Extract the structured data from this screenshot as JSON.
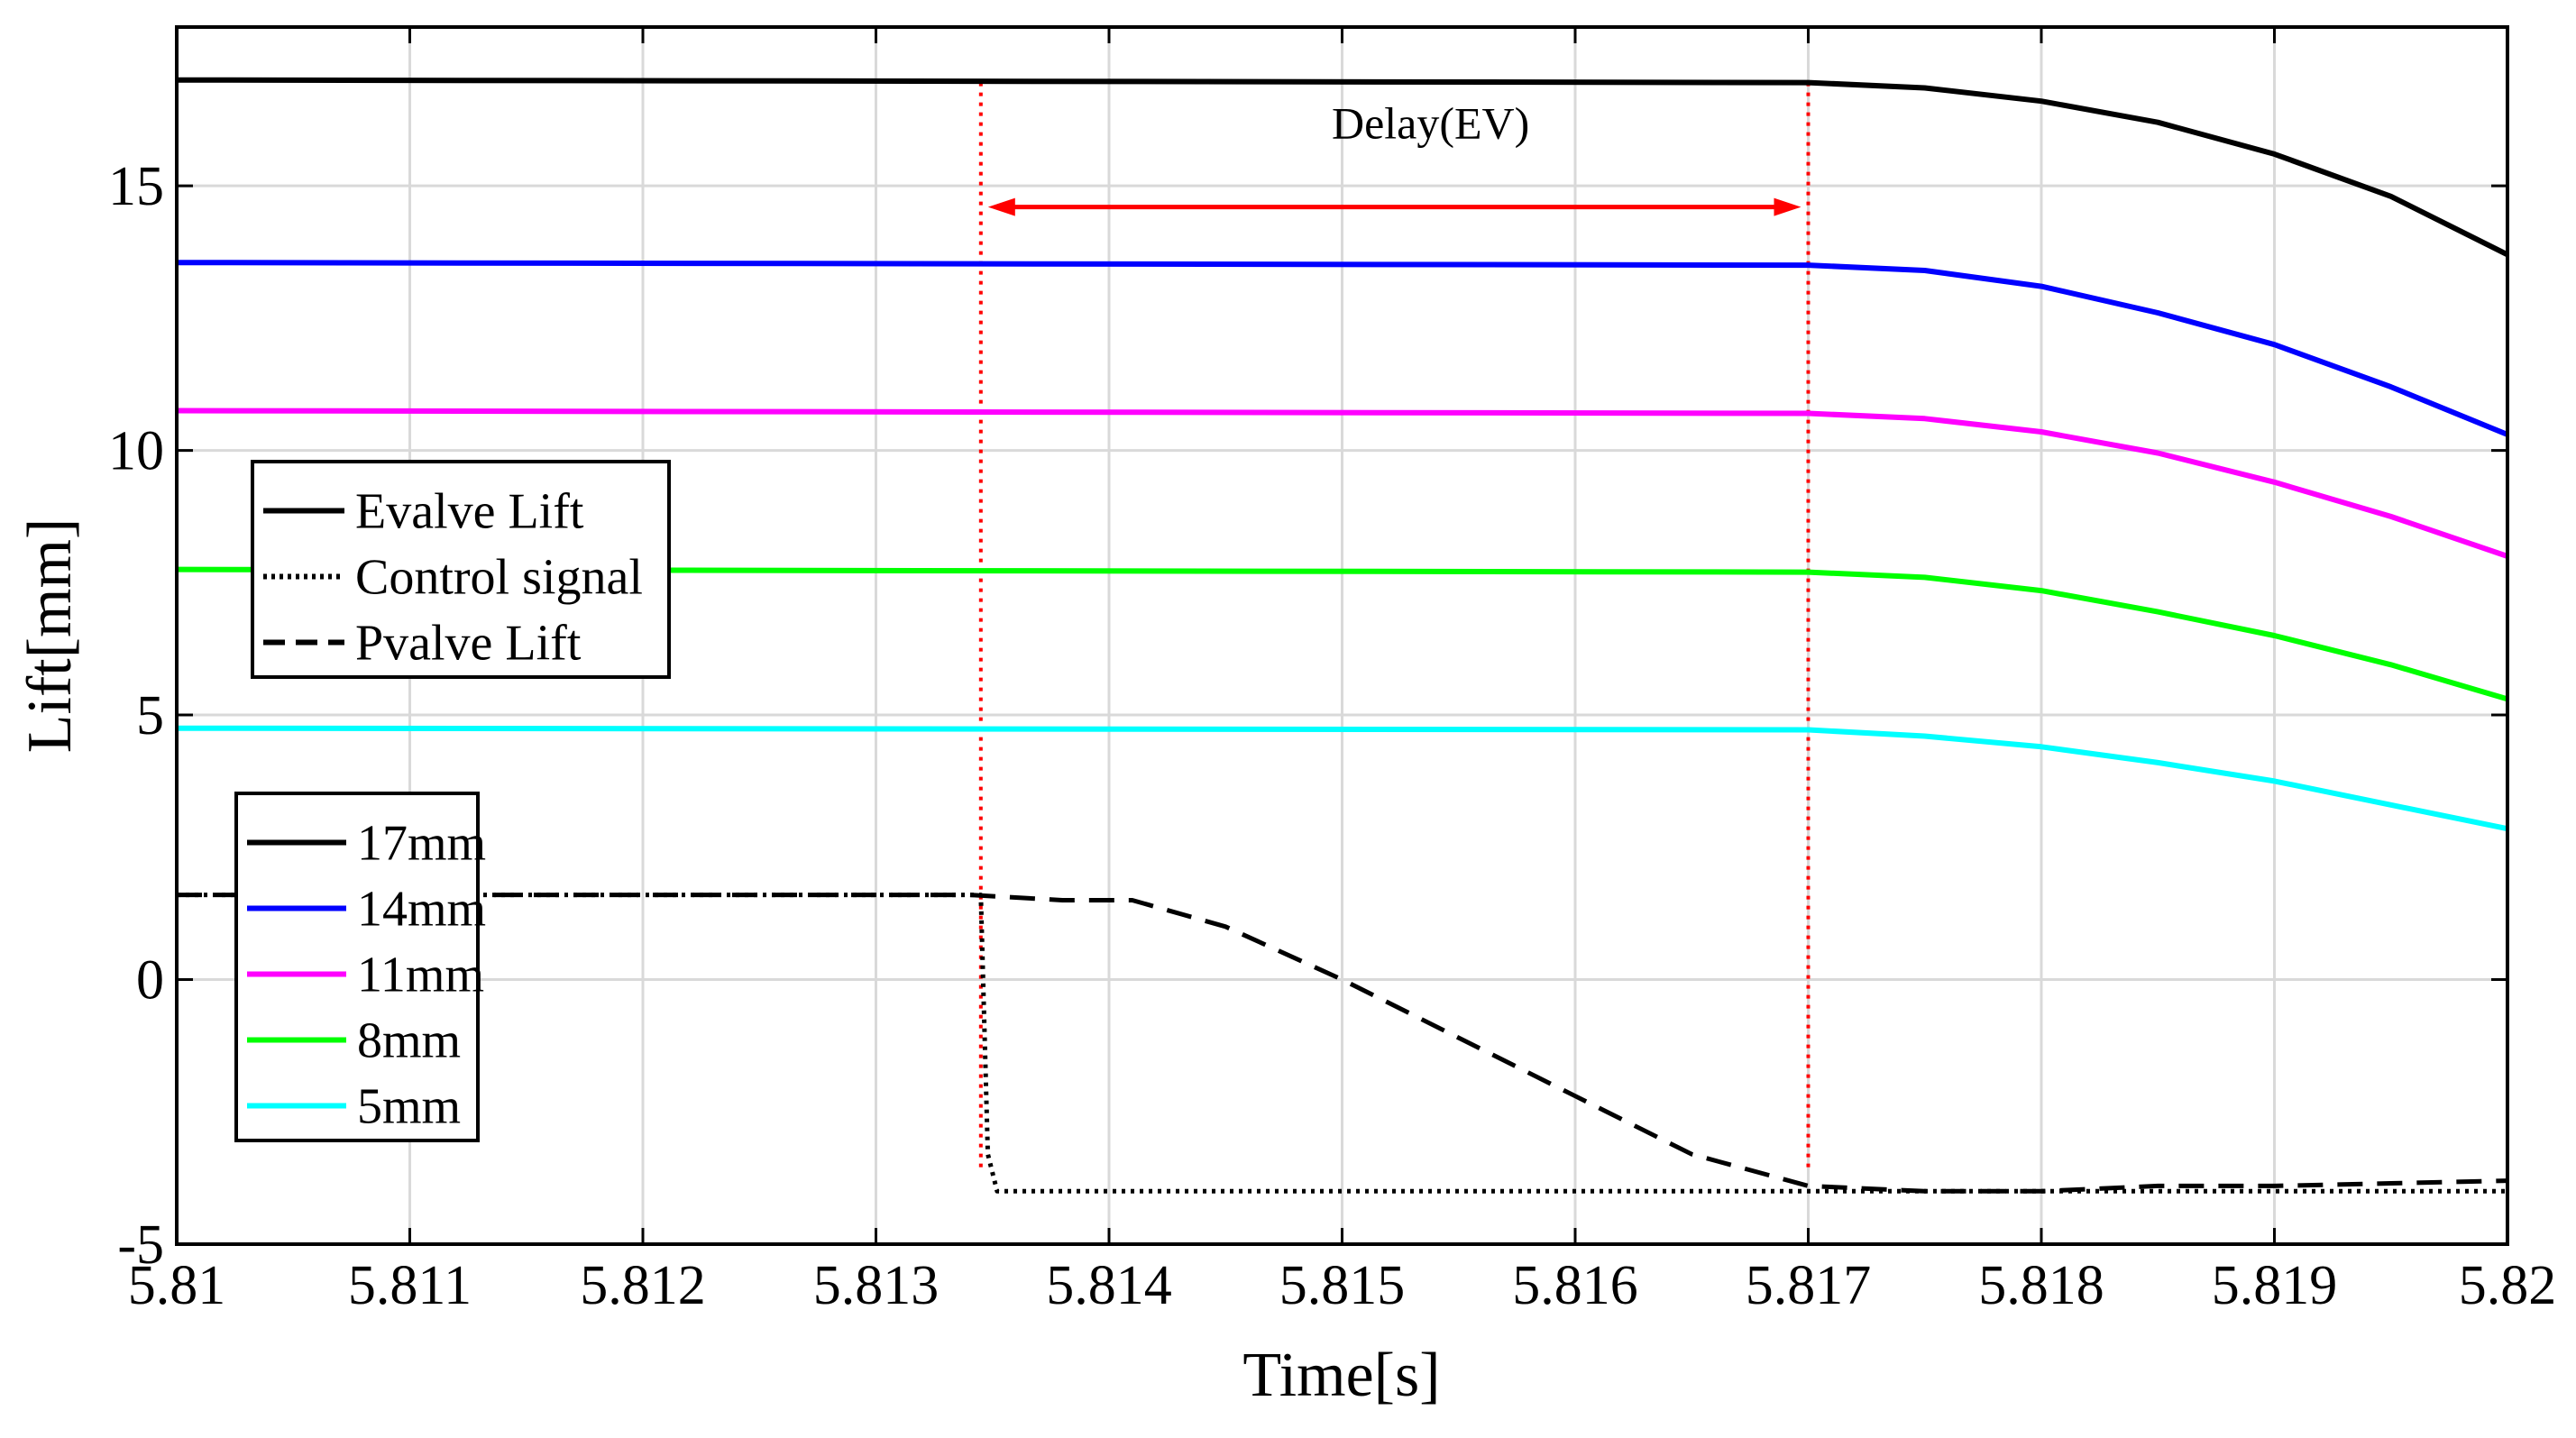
{
  "chart_data": {
    "type": "line",
    "title": "",
    "xlabel": "Time[s]",
    "ylabel": "Lift[mm]",
    "xlim": [
      5.81,
      5.82
    ],
    "ylim": [
      -5,
      18
    ],
    "xticks": [
      5.81,
      5.811,
      5.812,
      5.813,
      5.814,
      5.815,
      5.816,
      5.817,
      5.818,
      5.819,
      5.82
    ],
    "xtick_labels": [
      "5.81",
      "5.811",
      "5.812",
      "5.813",
      "5.814",
      "5.815",
      "5.816",
      "5.817",
      "5.818",
      "5.819",
      "5.82"
    ],
    "yticks": [
      -5,
      0,
      5,
      10,
      15
    ],
    "ytick_labels": [
      "-5",
      "0",
      "5",
      "10",
      "15"
    ],
    "grid": true,
    "series": [
      {
        "name": "17mm",
        "style": "solid",
        "color": "#000000",
        "x": [
          5.81,
          5.817,
          5.8175,
          5.818,
          5.8185,
          5.819,
          5.8195,
          5.82
        ],
        "y": [
          17.0,
          16.95,
          16.85,
          16.6,
          16.2,
          15.6,
          14.8,
          13.7
        ]
      },
      {
        "name": "14mm",
        "style": "solid",
        "color": "#0000ff",
        "x": [
          5.81,
          5.817,
          5.8175,
          5.818,
          5.8185,
          5.819,
          5.8195,
          5.82
        ],
        "y": [
          13.55,
          13.5,
          13.4,
          13.1,
          12.6,
          12.0,
          11.2,
          10.3
        ]
      },
      {
        "name": "11mm",
        "style": "solid",
        "color": "#ff00ff",
        "x": [
          5.81,
          5.817,
          5.8175,
          5.818,
          5.8185,
          5.819,
          5.8195,
          5.82
        ],
        "y": [
          10.75,
          10.7,
          10.6,
          10.35,
          9.95,
          9.4,
          8.75,
          8.0
        ]
      },
      {
        "name": "8mm",
        "style": "solid",
        "color": "#00ff00",
        "x": [
          5.81,
          5.817,
          5.8175,
          5.818,
          5.8185,
          5.819,
          5.8195,
          5.82
        ],
        "y": [
          7.75,
          7.7,
          7.6,
          7.35,
          6.95,
          6.5,
          5.95,
          5.3
        ]
      },
      {
        "name": "5mm",
        "style": "solid",
        "color": "#00ffff",
        "x": [
          5.81,
          5.817,
          5.8175,
          5.818,
          5.8185,
          5.819,
          5.8195,
          5.82
        ],
        "y": [
          4.75,
          4.72,
          4.6,
          4.4,
          4.1,
          3.75,
          3.3,
          2.85
        ]
      },
      {
        "name": "Control signal",
        "style": "dotted",
        "color": "#000000",
        "x": [
          5.81,
          5.81345,
          5.81348,
          5.81352,
          5.82
        ],
        "y": [
          1.6,
          1.6,
          -3.3,
          -4.0,
          -4.0
        ]
      },
      {
        "name": "Pvalve Lift",
        "style": "dashed",
        "color": "#000000",
        "x": [
          5.81,
          5.8134,
          5.8138,
          5.8141,
          5.8145,
          5.815,
          5.8155,
          5.816,
          5.8165,
          5.817,
          5.8175,
          5.818,
          5.8185,
          5.819,
          5.8195,
          5.82
        ],
        "y": [
          1.6,
          1.6,
          1.5,
          1.5,
          1.0,
          0.0,
          -1.1,
          -2.2,
          -3.3,
          -3.9,
          -4.0,
          -4.0,
          -3.9,
          -3.9,
          -3.85,
          -3.8
        ]
      }
    ],
    "markers": [
      {
        "type": "vline",
        "x": 5.81345,
        "style": "dotted",
        "color": "#ff0000"
      },
      {
        "type": "vline",
        "x": 5.817,
        "style": "dotted",
        "color": "#ff0000"
      }
    ],
    "annotations": [
      {
        "text": "Delay(EV)",
        "type": "double-arrow",
        "x_start": 5.81345,
        "x_end": 5.817,
        "y": 14.6,
        "text_y": 15.9,
        "color": "#ff0000"
      }
    ],
    "legends": [
      {
        "placement": "left-middle",
        "entries": [
          {
            "label": "Evalve Lift",
            "style": "solid",
            "color": "#000000"
          },
          {
            "label": "Control signal",
            "style": "dotted",
            "color": "#000000"
          },
          {
            "label": "Pvalve Lift",
            "style": "dashed",
            "color": "#000000"
          }
        ]
      },
      {
        "placement": "bottom-left",
        "entries": [
          {
            "label": "17mm",
            "style": "solid",
            "color": "#000000"
          },
          {
            "label": "14mm",
            "style": "solid",
            "color": "#0000ff"
          },
          {
            "label": "11mm",
            "style": "solid",
            "color": "#ff00ff"
          },
          {
            "label": "8mm",
            "style": "solid",
            "color": "#00ff00"
          },
          {
            "label": "5mm",
            "style": "solid",
            "color": "#00ffff"
          }
        ]
      }
    ]
  }
}
